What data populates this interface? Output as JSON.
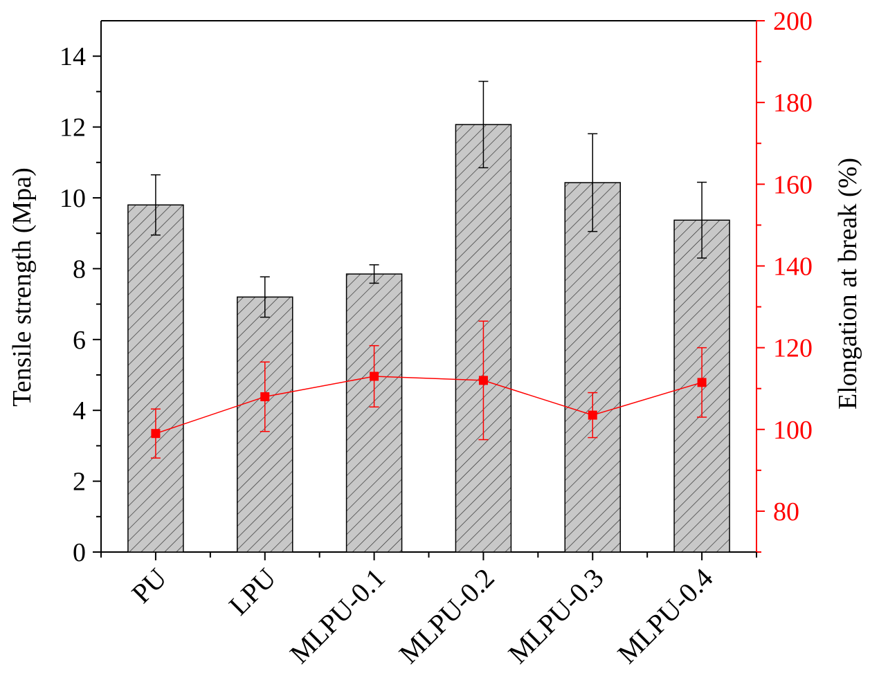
{
  "chart_data": {
    "type": "bar",
    "categories": [
      "PU",
      "LPU",
      "MLPU-0.1",
      "MLPU-0.2",
      "MLPU-0.3",
      "MLPU-0.4"
    ],
    "series": [
      {
        "name": "",
        "type": "bar",
        "axis": "left",
        "values": [
          9.8,
          7.2,
          7.85,
          12.07,
          10.43,
          9.37
        ],
        "errors": [
          0.85,
          0.57,
          0.26,
          1.22,
          1.38,
          1.07
        ]
      },
      {
        "name": "",
        "type": "line",
        "axis": "right",
        "values": [
          99.0,
          108.0,
          113.0,
          112.0,
          103.5,
          111.5
        ],
        "errors": [
          6.0,
          8.5,
          7.5,
          14.5,
          5.5,
          8.5
        ]
      }
    ],
    "ylabel": "Tensile strength (Mpa)",
    "y2label": "Elongation at break (%)",
    "ylim": [
      0,
      15
    ],
    "y2lim": [
      70,
      200
    ],
    "yticks": [
      "0",
      "2",
      "4",
      "6",
      "8",
      "10",
      "12",
      "14"
    ],
    "y2ticks": [
      "80",
      "100",
      "120",
      "140",
      "160",
      "180",
      "200"
    ],
    "bar_color": "#c8c8c8",
    "bar_hatch": "diagonal",
    "line_color": "#ff0000",
    "right_axis_color": "#ff0000",
    "left_label_color": "#000000",
    "grid": false,
    "legend": "none"
  }
}
